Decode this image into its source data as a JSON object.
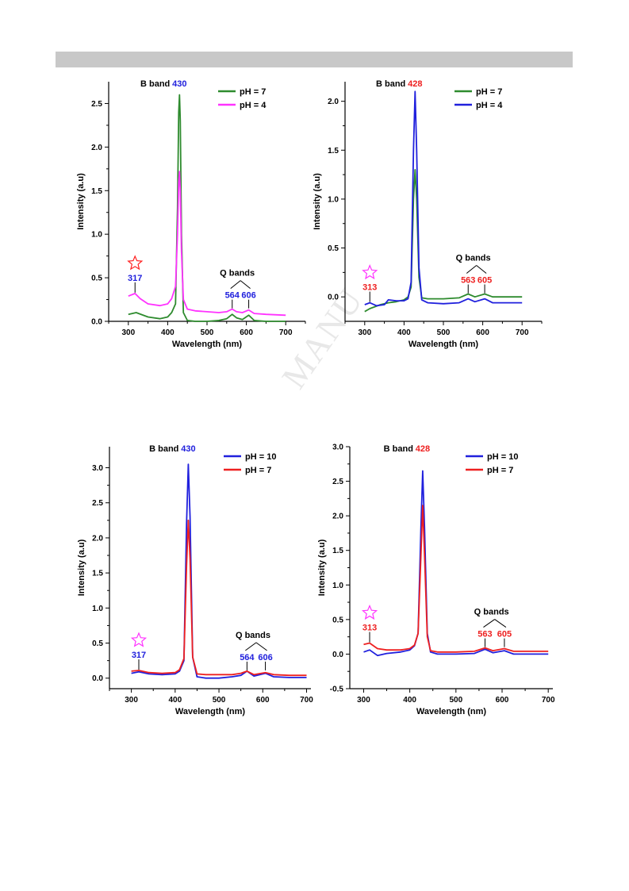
{
  "page": {
    "header_bar_color": "#c8c8c8",
    "watermark": "MANU"
  },
  "chart_data": [
    {
      "type": "line",
      "xlabel": "Wavelength (nm)",
      "ylabel": "Intensity (a.u)",
      "xlim": [
        250,
        750
      ],
      "ylim": [
        0,
        2.75
      ],
      "xticks": [
        300,
        400,
        500,
        600,
        700
      ],
      "yticks": [
        0.0,
        0.5,
        1.0,
        1.5,
        2.0,
        2.5
      ],
      "legend_position": "top-right",
      "series": [
        {
          "name": "pH = 7",
          "color": "#2e8b2e",
          "x": [
            300,
            320,
            350,
            380,
            400,
            410,
            420,
            425,
            428,
            430,
            432,
            435,
            440,
            450,
            470,
            500,
            530,
            550,
            564,
            575,
            590,
            606,
            620,
            650,
            700
          ],
          "y": [
            0.08,
            0.1,
            0.05,
            0.03,
            0.05,
            0.1,
            0.2,
            1.3,
            2.4,
            2.6,
            2.3,
            1.0,
            0.1,
            0.01,
            0.0,
            0.0,
            0.01,
            0.03,
            0.08,
            0.04,
            0.02,
            0.07,
            0.01,
            0.0,
            0.0
          ]
        },
        {
          "name": "pH = 4",
          "color": "#ff33ff",
          "x": [
            300,
            317,
            330,
            350,
            380,
            400,
            410,
            420,
            425,
            428,
            430,
            432,
            435,
            440,
            450,
            470,
            500,
            530,
            550,
            564,
            575,
            590,
            606,
            620,
            650,
            700
          ],
          "y": [
            0.29,
            0.32,
            0.26,
            0.2,
            0.18,
            0.2,
            0.26,
            0.4,
            1.0,
            1.6,
            1.72,
            1.5,
            0.8,
            0.25,
            0.14,
            0.12,
            0.11,
            0.1,
            0.11,
            0.14,
            0.11,
            0.1,
            0.13,
            0.09,
            0.08,
            0.07
          ]
        }
      ],
      "annotations": {
        "b_band": "B band",
        "b_peak": "430",
        "q_bands": "Q bands",
        "q1": "564",
        "q2": "606",
        "extra": "317"
      },
      "annotation_colors": {
        "b_peak": "#2020dd",
        "q_peaks": "#2020dd",
        "extra": "#2020dd",
        "star": "#ff2020"
      }
    },
    {
      "type": "line",
      "xlabel": "Wavelength (nm)",
      "ylabel": "Intensity (a.u)",
      "xlim": [
        250,
        750
      ],
      "ylim": [
        -0.25,
        2.2
      ],
      "xticks": [
        300,
        400,
        500,
        600,
        700
      ],
      "yticks": [
        0.0,
        0.5,
        1.0,
        1.5,
        2.0
      ],
      "legend_position": "top-right",
      "series": [
        {
          "name": "pH = 7",
          "color": "#2e8b2e",
          "x": [
            300,
            313,
            340,
            360,
            380,
            400,
            410,
            418,
            424,
            428,
            432,
            438,
            445,
            460,
            500,
            540,
            563,
            580,
            605,
            625,
            660,
            700
          ],
          "y": [
            -0.15,
            -0.12,
            -0.08,
            -0.06,
            -0.05,
            -0.03,
            0.0,
            0.1,
            1.0,
            1.3,
            1.0,
            0.2,
            -0.01,
            -0.02,
            -0.02,
            -0.01,
            0.03,
            0.0,
            0.03,
            0.0,
            0.0,
            0.0
          ]
        },
        {
          "name": "pH = 4",
          "color": "#2020dd",
          "x": [
            300,
            313,
            330,
            350,
            360,
            380,
            400,
            410,
            418,
            424,
            428,
            432,
            438,
            445,
            460,
            500,
            540,
            563,
            580,
            605,
            625,
            660,
            700
          ],
          "y": [
            -0.08,
            -0.06,
            -0.09,
            -0.08,
            -0.03,
            -0.04,
            -0.04,
            -0.02,
            0.15,
            1.5,
            2.1,
            1.5,
            0.3,
            -0.03,
            -0.06,
            -0.07,
            -0.06,
            -0.02,
            -0.05,
            -0.02,
            -0.06,
            -0.06,
            -0.06
          ]
        }
      ],
      "annotations": {
        "b_band": "B band",
        "b_peak": "428",
        "q_bands": "Q bands",
        "q1": "563",
        "q2": "605",
        "extra": "313"
      },
      "annotation_colors": {
        "b_peak": "#ee2020",
        "q_peaks": "#ee2020",
        "extra": "#ee2020",
        "star": "#ff33ff"
      }
    },
    {
      "type": "line",
      "xlabel": "Wavelength (nm)",
      "ylabel": "Intensity (a.u)",
      "xlim": [
        250,
        710
      ],
      "ylim": [
        -0.15,
        3.3
      ],
      "xticks": [
        300,
        400,
        500,
        600,
        700
      ],
      "yticks": [
        0.0,
        0.5,
        1.0,
        1.5,
        2.0,
        2.5,
        3.0
      ],
      "legend_position": "top-right",
      "series": [
        {
          "name": "pH = 10",
          "color": "#2020dd",
          "x": [
            300,
            317,
            340,
            370,
            400,
            410,
            420,
            426,
            430,
            434,
            440,
            450,
            470,
            500,
            530,
            550,
            564,
            580,
            606,
            625,
            660,
            700
          ],
          "y": [
            0.07,
            0.09,
            0.06,
            0.05,
            0.06,
            0.1,
            0.25,
            2.2,
            3.05,
            2.3,
            0.3,
            0.02,
            0.0,
            0.0,
            0.02,
            0.04,
            0.1,
            0.03,
            0.07,
            0.02,
            0.01,
            0.01
          ]
        },
        {
          "name": "pH = 7",
          "color": "#ee2020",
          "x": [
            300,
            317,
            340,
            370,
            400,
            410,
            420,
            426,
            430,
            434,
            440,
            450,
            470,
            500,
            530,
            550,
            564,
            580,
            606,
            625,
            660,
            700
          ],
          "y": [
            0.1,
            0.11,
            0.08,
            0.07,
            0.08,
            0.12,
            0.28,
            1.6,
            2.25,
            1.7,
            0.3,
            0.06,
            0.05,
            0.05,
            0.05,
            0.07,
            0.1,
            0.05,
            0.08,
            0.05,
            0.04,
            0.04
          ]
        }
      ],
      "annotations": {
        "b_band": "B band",
        "b_peak": "430",
        "q_bands": "Q bands",
        "q1": "564",
        "q2": "606",
        "extra": "317"
      },
      "annotation_colors": {
        "b_peak": "#2020dd",
        "q_peaks": "#2020dd",
        "extra": "#2020dd",
        "star": "#ff33ff"
      }
    },
    {
      "type": "line",
      "xlabel": "Wavelength (nm)",
      "ylabel": "Intensity (a.u)",
      "xlim": [
        270,
        710
      ],
      "ylim": [
        -0.5,
        3.0
      ],
      "xticks": [
        300,
        400,
        500,
        600,
        700
      ],
      "yticks": [
        -0.5,
        0.0,
        0.5,
        1.0,
        1.5,
        2.0,
        2.5,
        3.0
      ],
      "legend_position": "top-right",
      "series": [
        {
          "name": "pH = 10",
          "color": "#2020dd",
          "x": [
            300,
            313,
            330,
            350,
            380,
            400,
            410,
            418,
            424,
            428,
            432,
            438,
            445,
            460,
            500,
            540,
            563,
            580,
            605,
            625,
            660,
            700
          ],
          "y": [
            0.03,
            0.06,
            -0.02,
            0.01,
            0.03,
            0.06,
            0.12,
            0.3,
            1.8,
            2.65,
            1.8,
            0.3,
            0.03,
            0.0,
            0.0,
            0.01,
            0.07,
            0.02,
            0.05,
            0.0,
            0.0,
            0.0
          ]
        },
        {
          "name": "pH = 7",
          "color": "#ee2020",
          "x": [
            300,
            313,
            330,
            350,
            380,
            400,
            410,
            418,
            424,
            428,
            432,
            438,
            445,
            460,
            500,
            540,
            563,
            580,
            605,
            625,
            660,
            700
          ],
          "y": [
            0.14,
            0.16,
            0.08,
            0.06,
            0.06,
            0.08,
            0.13,
            0.3,
            1.4,
            2.15,
            1.4,
            0.25,
            0.05,
            0.03,
            0.03,
            0.04,
            0.09,
            0.05,
            0.08,
            0.04,
            0.04,
            0.04
          ]
        }
      ],
      "annotations": {
        "b_band": "B band",
        "b_peak": "428",
        "q_bands": "Q bands",
        "q1": "563",
        "q2": "605",
        "extra": "313"
      },
      "annotation_colors": {
        "b_peak": "#ee2020",
        "q_peaks": "#ee2020",
        "extra": "#ee2020",
        "star": "#ff33ff"
      }
    }
  ]
}
